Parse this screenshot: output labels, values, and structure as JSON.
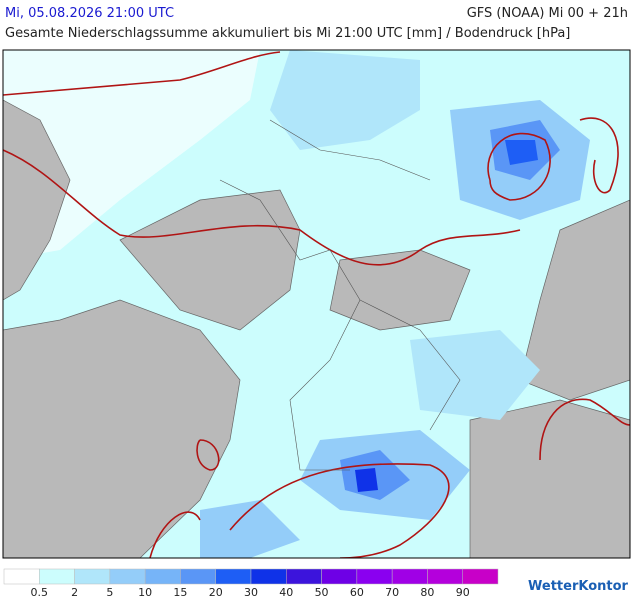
{
  "header": {
    "datetime": "Mi, 05.08.2026 21:00 UTC",
    "model": "GFS (NOAA) Mi 00 + 21h",
    "subtitle": "Gesamte Niederschlagssumme akkumuliert bis Mi 21:00 UTC [mm] / Bodendruck [hPa]"
  },
  "legend": {
    "colors": [
      "#ffffff",
      "#ccfdfd",
      "#b0e6fa",
      "#94cdf9",
      "#76b4f8",
      "#5a96f6",
      "#1e5ef5",
      "#0f32e8",
      "#3c14dc",
      "#6e00e6",
      "#8a00f0",
      "#a000e6",
      "#b400dc",
      "#c800c8"
    ],
    "labels": [
      "0.5",
      "2",
      "5",
      "10",
      "15",
      "20",
      "30",
      "40",
      "50",
      "60",
      "70",
      "80",
      "90"
    ]
  },
  "logo": "WetterKontor"
}
